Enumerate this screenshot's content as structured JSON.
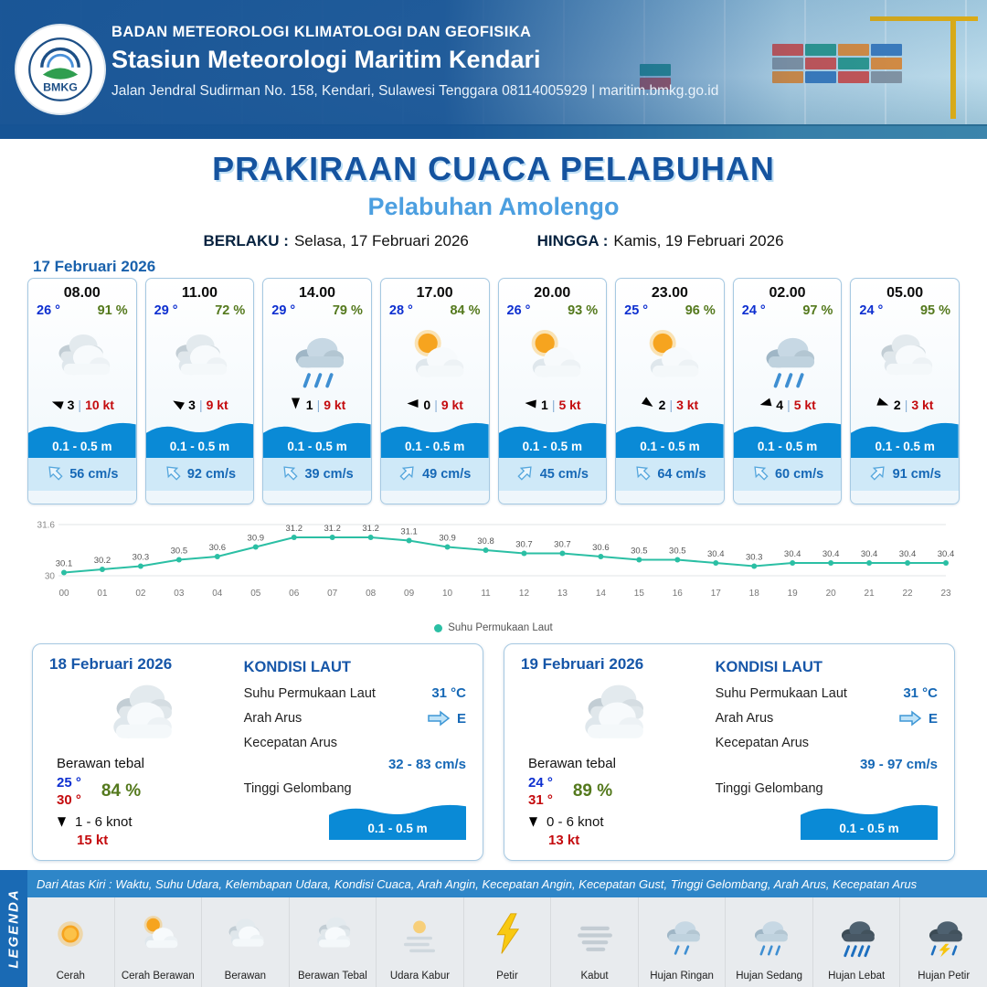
{
  "header": {
    "logo_text": "BMKG",
    "agency": "BADAN METEOROLOGI KLIMATOLOGI DAN GEOFISIKA",
    "station": "Stasiun Meteorologi Maritim Kendari",
    "address": "Jalan Jendral Sudirman No. 158, Kendari, Sulawesi Tenggara  08114005929 | maritim.bmkg.go.id"
  },
  "title": {
    "main": "PRAKIRAAN CUACA PELABUHAN",
    "subtitle": "Pelabuhan Amolengo",
    "valid_label": "BERLAKU :",
    "valid_value": "Selasa, 17 Februari 2026",
    "until_label": "HINGGA :",
    "until_value": "Kamis, 19 Februari 2026"
  },
  "forecast_date": "17 Februari 2026",
  "forecast_cards": [
    {
      "time": "08.00",
      "temp": "26 °",
      "humidity": "91 %",
      "icon": "berawan",
      "wind": "3",
      "gust": "10 kt",
      "wind_deg": 200,
      "wave": "0.1 - 0.5 m",
      "current": "56 cm/s",
      "current_deg": -135
    },
    {
      "time": "11.00",
      "temp": "29 °",
      "humidity": "72 %",
      "icon": "berawan",
      "wind": "3",
      "gust": "9 kt",
      "wind_deg": 210,
      "wave": "0.1 - 0.5 m",
      "current": "92 cm/s",
      "current_deg": -135
    },
    {
      "time": "14.00",
      "temp": "29 °",
      "humidity": "79 %",
      "icon": "hujan-sedang",
      "wind": "1",
      "gust": "9 kt",
      "wind_deg": 90,
      "wave": "0.1 - 0.5 m",
      "current": "39 cm/s",
      "current_deg": -135
    },
    {
      "time": "17.00",
      "temp": "28 °",
      "humidity": "84 %",
      "icon": "cerah-berawan",
      "wind": "0",
      "gust": "9 kt",
      "wind_deg": 180,
      "wave": "0.1 - 0.5 m",
      "current": "49 cm/s",
      "current_deg": -45
    },
    {
      "time": "20.00",
      "temp": "26 °",
      "humidity": "93 %",
      "icon": "cerah-berawan",
      "wind": "1",
      "gust": "5 kt",
      "wind_deg": 185,
      "wave": "0.1 - 0.5 m",
      "current": "45 cm/s",
      "current_deg": -45
    },
    {
      "time": "23.00",
      "temp": "25 °",
      "humidity": "96 %",
      "icon": "cerah-berawan",
      "wind": "2",
      "gust": "3 kt",
      "wind_deg": 35,
      "wave": "0.1 - 0.5 m",
      "current": "64 cm/s",
      "current_deg": -135
    },
    {
      "time": "02.00",
      "temp": "24 °",
      "humidity": "97 %",
      "icon": "hujan-sedang",
      "wind": "4",
      "gust": "5 kt",
      "wind_deg": 165,
      "wave": "0.1 - 0.5 m",
      "current": "60 cm/s",
      "current_deg": -135
    },
    {
      "time": "05.00",
      "temp": "24 °",
      "humidity": "95 %",
      "icon": "berawan",
      "wind": "2",
      "gust": "3 kt",
      "wind_deg": 20,
      "wave": "0.1 - 0.5 m",
      "current": "91 cm/s",
      "current_deg": -45
    }
  ],
  "chart_data": {
    "type": "line",
    "series_name": "Suhu Permukaan Laut",
    "x": [
      "00",
      "01",
      "02",
      "03",
      "04",
      "05",
      "06",
      "07",
      "08",
      "09",
      "10",
      "11",
      "12",
      "13",
      "14",
      "15",
      "16",
      "17",
      "18",
      "19",
      "20",
      "21",
      "22",
      "23"
    ],
    "values": [
      30.1,
      30.2,
      30.3,
      30.5,
      30.6,
      30.9,
      31.2,
      31.2,
      31.2,
      31.1,
      30.9,
      30.8,
      30.7,
      30.7,
      30.6,
      30.5,
      30.5,
      30.4,
      30.3,
      30.4,
      30.4,
      30.4,
      30.4,
      30.4
    ],
    "ylim": [
      30,
      31.6
    ],
    "yticks": [
      30,
      31.6
    ],
    "line_color": "#2bbfa4",
    "grid": true,
    "legend_position": "bottom"
  },
  "day_cards": [
    {
      "date": "18 Februari 2026",
      "icon": "berawan-tebal",
      "condition": "Berawan tebal",
      "temp_min": "25 °",
      "temp_max": "30 °",
      "humidity": "84 %",
      "wind_range": "1  - 6 knot",
      "gust": "15 kt",
      "sea": {
        "title": "KONDISI LAUT",
        "sst_label": "Suhu Permukaan Laut",
        "sst": "31 °C",
        "dir_label": "Arah Arus",
        "dir": "E",
        "speed_label": "Kecepatan Arus",
        "speed": "32 - 83 cm/s",
        "wave_label": "Tinggi Gelombang",
        "wave": "0.1 - 0.5 m"
      }
    },
    {
      "date": "19 Februari 2026",
      "icon": "berawan-tebal",
      "condition": "Berawan tebal",
      "temp_min": "24 °",
      "temp_max": "31 °",
      "humidity": "89 %",
      "wind_range": "0  - 6 knot",
      "gust": "13 kt",
      "sea": {
        "title": "KONDISI LAUT",
        "sst_label": "Suhu Permukaan Laut",
        "sst": "31 °C",
        "dir_label": "Arah Arus",
        "dir": "E",
        "speed_label": "Kecepatan Arus",
        "speed": "39 - 97 cm/s",
        "wave_label": "Tinggi Gelombang",
        "wave": "0.1 - 0.5 m"
      }
    }
  ],
  "legend": {
    "vertical_label": "LEGENDA",
    "note": "Dari Atas Kiri : Waktu, Suhu Udara, Kelembapan Udara, Kondisi Cuaca, Arah Angin, Kecepatan Angin, Kecepatan Gust, Tinggi Gelombang, Arah Arus, Kecepatan Arus",
    "items": [
      {
        "icon": "cerah",
        "label": "Cerah"
      },
      {
        "icon": "cerah-berawan",
        "label": "Cerah Berawan"
      },
      {
        "icon": "berawan",
        "label": "Berawan"
      },
      {
        "icon": "berawan-tebal",
        "label": "Berawan Tebal"
      },
      {
        "icon": "udara-kabur",
        "label": "Udara Kabur"
      },
      {
        "icon": "petir",
        "label": "Petir"
      },
      {
        "icon": "kabut",
        "label": "Kabut"
      },
      {
        "icon": "hujan-ringan",
        "label": "Hujan Ringan"
      },
      {
        "icon": "hujan-sedang",
        "label": "Hujan Sedang"
      },
      {
        "icon": "hujan-lebat",
        "label": "Hujan Lebat"
      },
      {
        "icon": "hujan-petir",
        "label": "Hujan Petir"
      }
    ]
  },
  "colors": {
    "accent": "#1656a8",
    "wave": "#0a8ad6",
    "temp_blue": "#0d2fd0",
    "humidity_green": "#54791d",
    "alert_red": "#c40b0e",
    "current_blue": "#1668b6",
    "chart_teal": "#2bbfa4"
  }
}
